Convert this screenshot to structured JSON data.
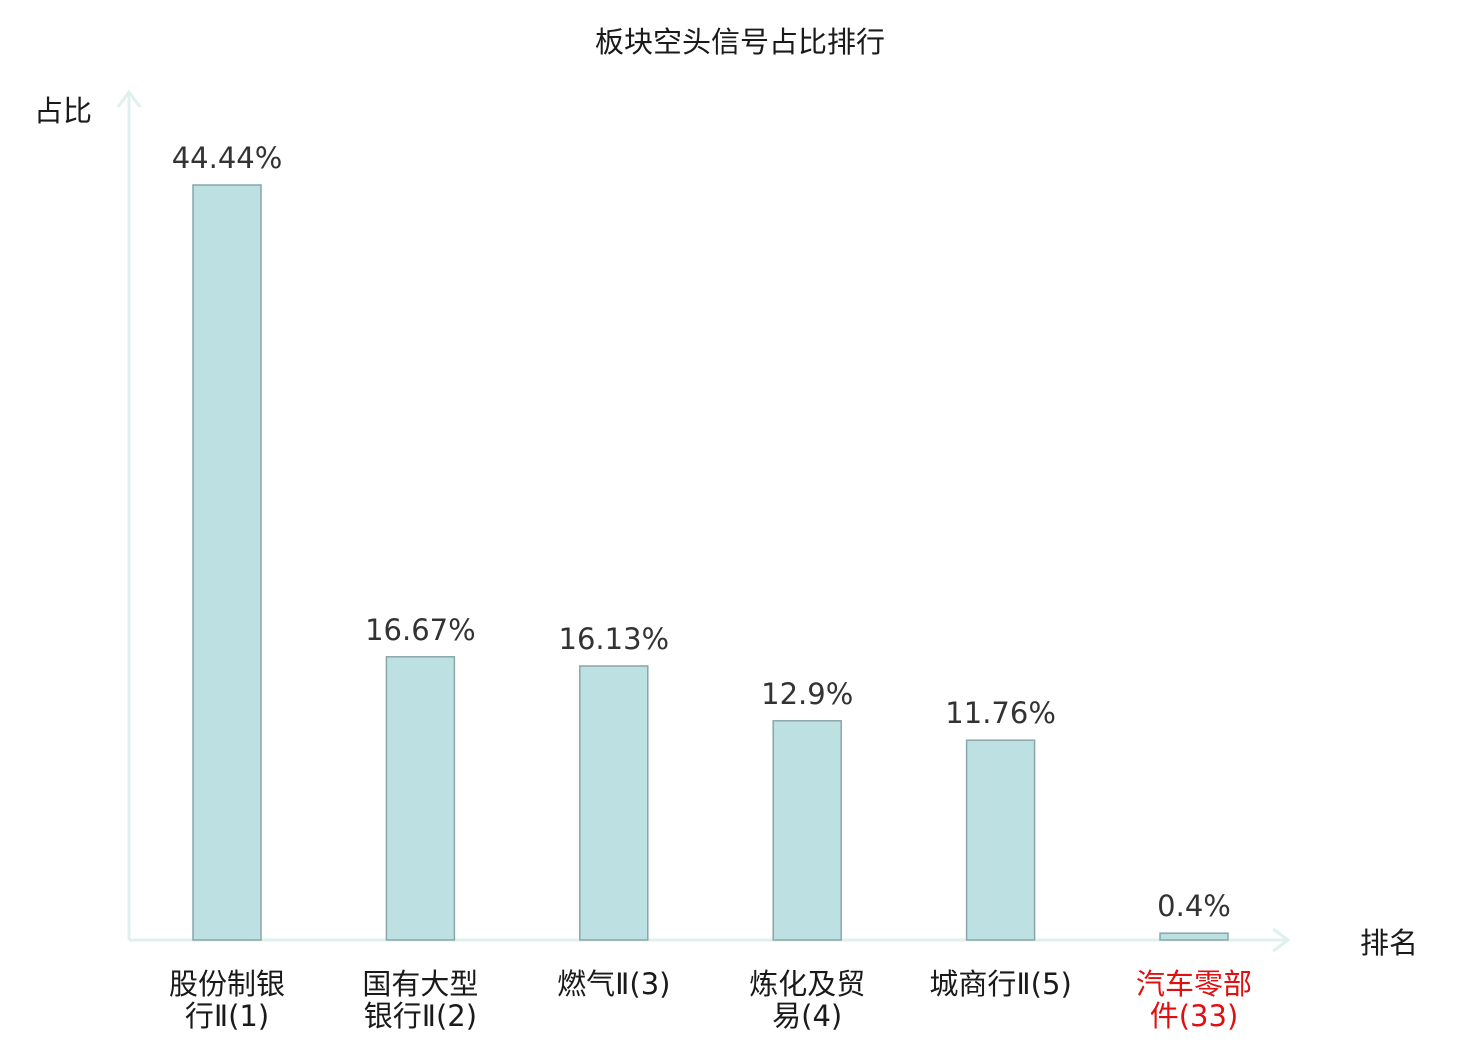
{
  "chart_data": {
    "type": "bar",
    "title": "板块空头信号占比排行",
    "ylabel": "占比",
    "xlabel": "排名",
    "ylim": [
      0,
      50
    ],
    "grid": false,
    "legend": "none",
    "categories": [
      [
        "股份制银",
        "行Ⅱ(1)"
      ],
      [
        "国有大型",
        "银行Ⅱ(2)"
      ],
      [
        "燃气Ⅱ(3)"
      ],
      [
        "炼化及贸",
        "易(4)"
      ],
      [
        "城商行Ⅱ(5)"
      ],
      [
        "汽车零部",
        "件(33)"
      ]
    ],
    "values": [
      44.44,
      16.67,
      16.13,
      12.9,
      11.76,
      0.4
    ],
    "value_labels": [
      "44.44%",
      "16.67%",
      "16.13%",
      "12.9%",
      "11.76%",
      "0.4%"
    ],
    "highlight_index": 5,
    "colors": {
      "bar_fill": "#bde0e3",
      "bar_stroke": "#8aa6a8",
      "axis": "#dff1ee",
      "text": "#1a1a1a",
      "value_text": "#333333",
      "highlight_text": "#e01010"
    }
  }
}
